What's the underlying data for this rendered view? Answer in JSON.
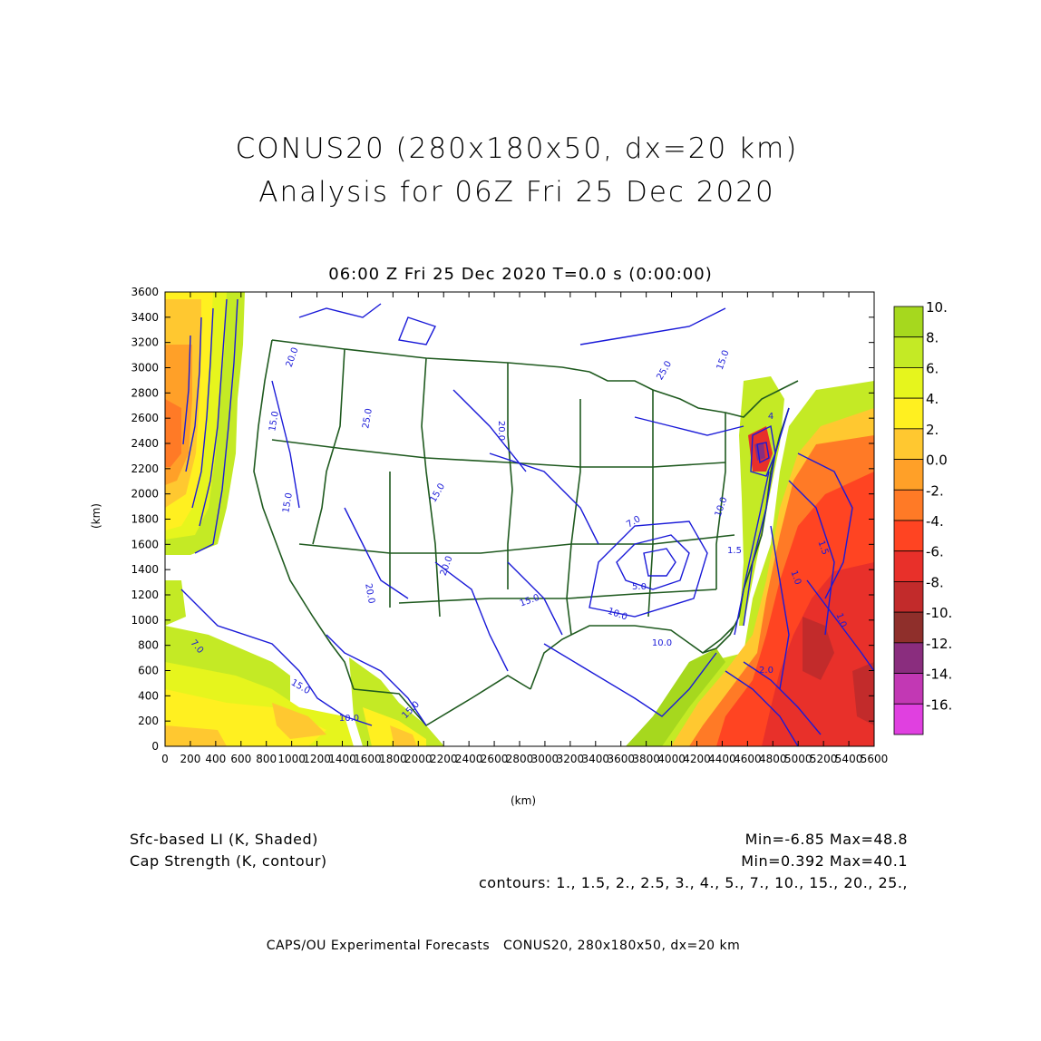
{
  "header": {
    "title_line1": "CONUS20 (280x180x50, dx=20 km)",
    "title_line2": "Analysis for 06Z Fri 25 Dec 2020",
    "subtitle": "06:00 Z Fri 25 Dec 2020    T=0.0 s (0:00:00)"
  },
  "axes": {
    "x_label": "(km)",
    "y_label": "(km)",
    "x_ticks": [
      "0",
      "200",
      "400",
      "600",
      "800",
      "1000",
      "1200",
      "1400",
      "1600",
      "1800",
      "2000",
      "2200",
      "2400",
      "2600",
      "2800",
      "3000",
      "3200",
      "3400",
      "3600",
      "3800",
      "4000",
      "4200",
      "4400",
      "4600",
      "4800",
      "5000",
      "5200",
      "5400",
      "5600"
    ],
    "y_ticks": [
      "0",
      "200",
      "400",
      "600",
      "800",
      "1000",
      "1200",
      "1400",
      "1600",
      "1800",
      "2000",
      "2200",
      "2400",
      "2600",
      "2800",
      "3000",
      "3200",
      "3400",
      "3600"
    ]
  },
  "colorbar": {
    "labels": [
      "10.",
      "8.",
      "6.",
      "4.",
      "2.",
      "0.0",
      "-2.",
      "-4.",
      "-6.",
      "-8.",
      "-10.",
      "-12.",
      "-14.",
      "-16."
    ],
    "colors": [
      "#a6d81e",
      "#c4ea25",
      "#e6f51d",
      "#fff020",
      "#ffc830",
      "#ffa028",
      "#ff7a26",
      "#ff4422",
      "#e8302a",
      "#c22b2b",
      "#8f2f2b",
      "#8a2d7e",
      "#c238b4",
      "#e040e0"
    ]
  },
  "contour_labels": [
    {
      "text": "20.0"
    },
    {
      "text": "15.0"
    },
    {
      "text": "15.0"
    },
    {
      "text": "25.0"
    },
    {
      "text": "20.0"
    },
    {
      "text": "15.0"
    },
    {
      "text": "20.0"
    },
    {
      "text": "20.0"
    },
    {
      "text": "15.0"
    },
    {
      "text": "10.0"
    },
    {
      "text": "10.0"
    },
    {
      "text": "7.0"
    },
    {
      "text": "15.0"
    },
    {
      "text": "10.0"
    },
    {
      "text": "15.0"
    },
    {
      "text": "7.0"
    },
    {
      "text": "5.0"
    },
    {
      "text": "10.0"
    },
    {
      "text": "1.5"
    },
    {
      "text": "1.0"
    },
    {
      "text": "1.0"
    },
    {
      "text": "2.0"
    },
    {
      "text": "1.5"
    },
    {
      "text": "25.0"
    },
    {
      "text": "15.0"
    },
    {
      "text": "4"
    }
  ],
  "footer": {
    "field1": "Sfc-based LI (K, Shaded)",
    "field1_stats": "Min=-6.85 Max=48.8",
    "field2": "Cap Strength (K, contour)",
    "field2_stats": "Min=0.392 Max=40.1",
    "contours": "contours: 1., 1.5, 2., 2.5, 3., 4., 5., 7., 10., 15., 20., 25.,",
    "credit": "CAPS/OU Experimental Forecasts   CONUS20, 280x180x50, dx=20 km"
  },
  "colors": {
    "state_lines": "#1f5a1f",
    "contours": "#1a1ad8",
    "frame": "#000000"
  }
}
